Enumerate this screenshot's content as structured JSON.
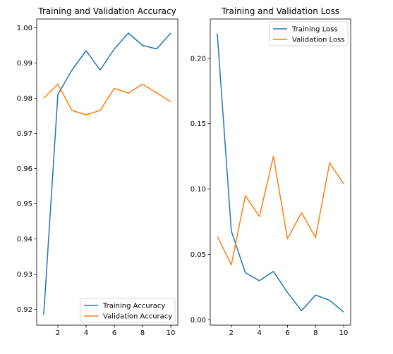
{
  "chart_data": [
    {
      "type": "line",
      "title": "Training and Validation Accuracy",
      "xlabel": "",
      "ylabel": "",
      "xlim": [
        0.5,
        10.5
      ],
      "ylim": [
        0.9155,
        1.0025
      ],
      "xticks": [
        2,
        4,
        6,
        8,
        10
      ],
      "yticks": [
        0.92,
        0.93,
        0.94,
        0.95,
        0.96,
        0.97,
        0.98,
        0.99,
        1.0
      ],
      "ytick_labels": [
        "0.92",
        "0.93",
        "0.94",
        "0.95",
        "0.96",
        "0.97",
        "0.98",
        "0.99",
        "1.00"
      ],
      "grid": false,
      "legend_position": "lower-right",
      "x": [
        1,
        2,
        3,
        4,
        5,
        6,
        7,
        8,
        9,
        10
      ],
      "series": [
        {
          "name": "Training Accuracy",
          "color": "#1f77b4",
          "values": [
            0.9185,
            0.981,
            0.988,
            0.9935,
            0.988,
            0.994,
            0.9985,
            0.995,
            0.994,
            0.9985
          ]
        },
        {
          "name": "Validation Accuracy",
          "color": "#ff7f0e",
          "values": [
            0.98,
            0.984,
            0.9765,
            0.9753,
            0.9765,
            0.9828,
            0.9814,
            0.984,
            0.9815,
            0.979
          ]
        }
      ]
    },
    {
      "type": "line",
      "title": "Training and Validation Loss",
      "xlabel": "",
      "ylabel": "",
      "xlim": [
        0.5,
        10.5
      ],
      "ylim": [
        -0.004,
        0.23
      ],
      "xticks": [
        2,
        4,
        6,
        8,
        10
      ],
      "yticks": [
        0.0,
        0.05,
        0.1,
        0.15,
        0.2
      ],
      "ytick_labels": [
        "0.00",
        "0.05",
        "0.10",
        "0.15",
        "0.20"
      ],
      "grid": false,
      "legend_position": "upper-right",
      "x": [
        1,
        2,
        3,
        4,
        5,
        6,
        7,
        8,
        9,
        10
      ],
      "series": [
        {
          "name": "Training Loss",
          "color": "#1f77b4",
          "values": [
            0.219,
            0.068,
            0.036,
            0.03,
            0.037,
            0.021,
            0.007,
            0.019,
            0.015,
            0.006
          ]
        },
        {
          "name": "Validation Loss",
          "color": "#ff7f0e",
          "values": [
            0.064,
            0.042,
            0.095,
            0.079,
            0.125,
            0.062,
            0.082,
            0.063,
            0.12,
            0.104
          ]
        }
      ]
    }
  ]
}
